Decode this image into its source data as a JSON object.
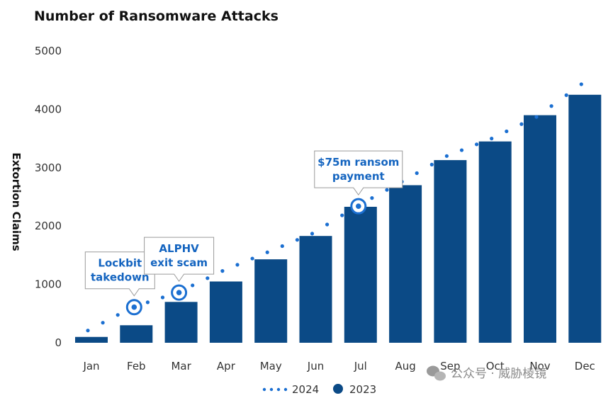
{
  "chart_data": {
    "type": "bar",
    "title": "Number of Ransomware Attacks",
    "ylabel": "Extortion Claims",
    "xlabel": "",
    "ylim": [
      0,
      5000
    ],
    "yticks": [
      0,
      1000,
      2000,
      3000,
      4000,
      5000
    ],
    "categories": [
      "Jan",
      "Feb",
      "Mar",
      "Apr",
      "May",
      "Jun",
      "Jul",
      "Aug",
      "Sep",
      "Oct",
      "Nov",
      "Dec"
    ],
    "series": [
      {
        "name": "2023",
        "type": "bar",
        "color": "#0b4a86",
        "values": [
          100,
          300,
          700,
          1050,
          1430,
          1830,
          2330,
          2700,
          3130,
          3450,
          3900,
          4250
        ]
      },
      {
        "name": "2024",
        "type": "dotted-line",
        "color": "#1b6fd1",
        "values": [
          210,
          610,
          860,
          1230,
          1550,
          1870,
          2340,
          2760,
          3200,
          3500,
          3870,
          4430
        ]
      }
    ],
    "annotations": [
      {
        "month": "Feb",
        "lines": [
          "Lockbit",
          "takedown"
        ]
      },
      {
        "month": "Mar",
        "lines": [
          "ALPHV",
          "exit scam"
        ]
      },
      {
        "month": "Jul",
        "lines": [
          "$75m ransom",
          "payment"
        ]
      }
    ],
    "legend": {
      "position": "bottom-center",
      "entries": [
        "2024",
        "2023"
      ]
    },
    "grid": false
  },
  "watermark": {
    "text": "公众号 · 威胁棱镜",
    "icon": "wechat-icon"
  }
}
